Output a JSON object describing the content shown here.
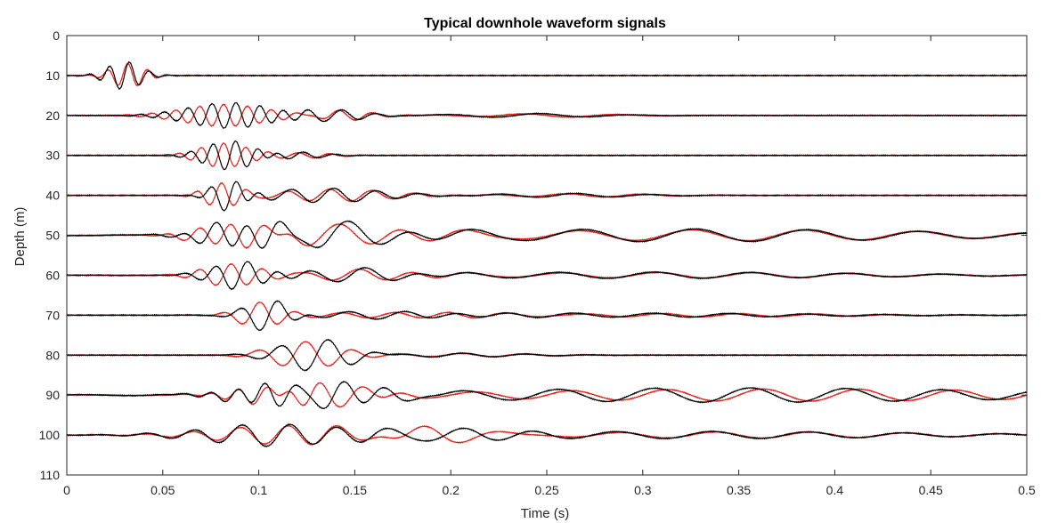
{
  "chart_data": {
    "type": "line",
    "title": "Typical downhole waveform signals",
    "xlabel": "Time (s)",
    "ylabel": "Depth (m)",
    "xlim": [
      0,
      0.5
    ],
    "ylim": [
      0,
      110
    ],
    "y_reversed": true,
    "grid": false,
    "xticks": [
      0,
      0.05,
      0.1,
      0.15,
      0.2,
      0.25,
      0.3,
      0.35,
      0.4,
      0.45,
      0.5
    ],
    "xtick_labels": [
      "0",
      "0.05",
      "0.1",
      "0.15",
      "0.2",
      "0.25",
      "0.3",
      "0.35",
      "0.4",
      "0.45",
      "0.5"
    ],
    "yticks": [
      0,
      10,
      20,
      30,
      40,
      50,
      60,
      70,
      80,
      90,
      100,
      110
    ],
    "ytick_labels": [
      "0",
      "10",
      "20",
      "30",
      "40",
      "50",
      "60",
      "70",
      "80",
      "90",
      "100",
      "110"
    ],
    "series_colors": {
      "black": "#000000",
      "red": "#e0201b"
    },
    "traces": [
      {
        "depth": 10,
        "packets": [
          {
            "t": 0.03,
            "freq": 95,
            "width": 0.012,
            "amp": 3.5,
            "lag": 0.002
          }
        ]
      },
      {
        "depth": 20,
        "packets": [
          {
            "t": 0.085,
            "freq": 80,
            "width": 0.03,
            "amp": 3.2,
            "lag": -0.003
          },
          {
            "t": 0.14,
            "freq": 55,
            "width": 0.02,
            "amp": 1.5,
            "lag": 0.004
          },
          {
            "t": 0.24,
            "freq": 20,
            "width": 0.05,
            "amp": 0.5,
            "lag": 0.01
          }
        ]
      },
      {
        "depth": 30,
        "packets": [
          {
            "t": 0.085,
            "freq": 85,
            "width": 0.018,
            "amp": 3.6,
            "lag": -0.003
          },
          {
            "t": 0.12,
            "freq": 60,
            "width": 0.02,
            "amp": 0.8,
            "lag": 0.003
          }
        ]
      },
      {
        "depth": 40,
        "packets": [
          {
            "t": 0.085,
            "freq": 75,
            "width": 0.012,
            "amp": 3.8,
            "lag": -0.004
          },
          {
            "t": 0.135,
            "freq": 45,
            "width": 0.04,
            "amp": 1.8,
            "lag": 0.005
          },
          {
            "t": 0.26,
            "freq": 25,
            "width": 0.05,
            "amp": 0.5,
            "lag": 0.01
          }
        ]
      },
      {
        "depth": 50,
        "packets": [
          {
            "t": 0.09,
            "freq": 60,
            "width": 0.025,
            "amp": 3.3,
            "lag": -0.004
          },
          {
            "t": 0.14,
            "freq": 30,
            "width": 0.05,
            "amp": 3.0,
            "lag": 0.006
          },
          {
            "t": 0.32,
            "freq": 17,
            "width": 0.18,
            "amp": 1.6,
            "lag": 0.02
          }
        ]
      },
      {
        "depth": 60,
        "packets": [
          {
            "t": 0.09,
            "freq": 60,
            "width": 0.02,
            "amp": 3.4,
            "lag": -0.004
          },
          {
            "t": 0.15,
            "freq": 35,
            "width": 0.04,
            "amp": 1.6,
            "lag": 0.006
          },
          {
            "t": 0.3,
            "freq": 20,
            "width": 0.15,
            "amp": 0.8,
            "lag": 0.02
          }
        ]
      },
      {
        "depth": 70,
        "packets": [
          {
            "t": 0.105,
            "freq": 50,
            "width": 0.015,
            "amp": 4.0,
            "lag": -0.004
          },
          {
            "t": 0.17,
            "freq": 35,
            "width": 0.06,
            "amp": 0.9,
            "lag": 0.005
          },
          {
            "t": 0.3,
            "freq": 25,
            "width": 0.12,
            "amp": 0.5,
            "lag": 0.02
          }
        ]
      },
      {
        "depth": 80,
        "packets": [
          {
            "t": 0.13,
            "freq": 40,
            "width": 0.025,
            "amp": 4.0,
            "lag": -0.005
          },
          {
            "t": 0.2,
            "freq": 30,
            "width": 0.05,
            "amp": 0.5,
            "lag": 0.01
          }
        ]
      },
      {
        "depth": 90,
        "packets": [
          {
            "t": 0.1,
            "freq": 70,
            "width": 0.025,
            "amp": 2.2,
            "lag": 0.004
          },
          {
            "t": 0.14,
            "freq": 45,
            "width": 0.03,
            "amp": 3.3,
            "lag": -0.005
          },
          {
            "t": 0.35,
            "freq": 20,
            "width": 0.2,
            "amp": 1.8,
            "lag": 0.025
          }
        ]
      },
      {
        "depth": 100,
        "packets": [
          {
            "t": 0.11,
            "freq": 40,
            "width": 0.05,
            "amp": 2.8,
            "lag": 0.006
          },
          {
            "t": 0.2,
            "freq": 25,
            "width": 0.04,
            "amp": 2.2,
            "lag": -0.01
          },
          {
            "t": 0.33,
            "freq": 20,
            "width": 0.15,
            "amp": 0.9,
            "lag": 0.02
          }
        ]
      }
    ]
  }
}
